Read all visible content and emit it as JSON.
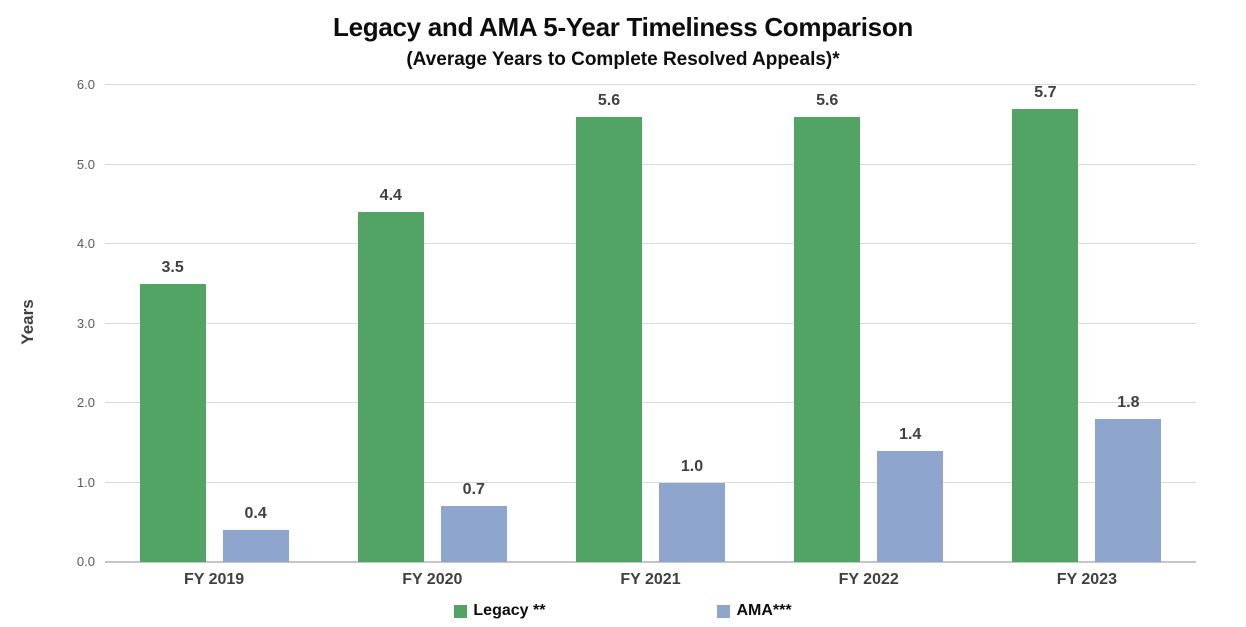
{
  "chart_data": {
    "type": "bar",
    "title": "Legacy and AMA 5-Year Timeliness Comparison",
    "subtitle": "(Average Years to Complete Resolved Appeals)*",
    "ylabel": "Years",
    "xlabel": "",
    "categories": [
      "FY 2019",
      "FY 2020",
      "FY 2021",
      "FY 2022",
      "FY 2023"
    ],
    "series": [
      {
        "name": "Legacy **",
        "color": "#51A464",
        "values": [
          3.5,
          4.4,
          5.6,
          5.6,
          5.7
        ]
      },
      {
        "name": "AMA***",
        "color": "#8EA6CE",
        "values": [
          0.4,
          0.7,
          1.0,
          1.4,
          1.8
        ]
      }
    ],
    "ylim": [
      0,
      6
    ],
    "ytick_step": 1,
    "ytick_decimals": 1,
    "grid": "horizontal",
    "legend_position": "bottom",
    "data_labels": true,
    "colors": {
      "background": "#ffffff",
      "gridline": "#d9d9d9",
      "axis_line": "#c6c6c6",
      "tick_label": "#595959",
      "data_label": "#404040",
      "axis_title": "#404040",
      "title": "#0d0d0d"
    }
  }
}
